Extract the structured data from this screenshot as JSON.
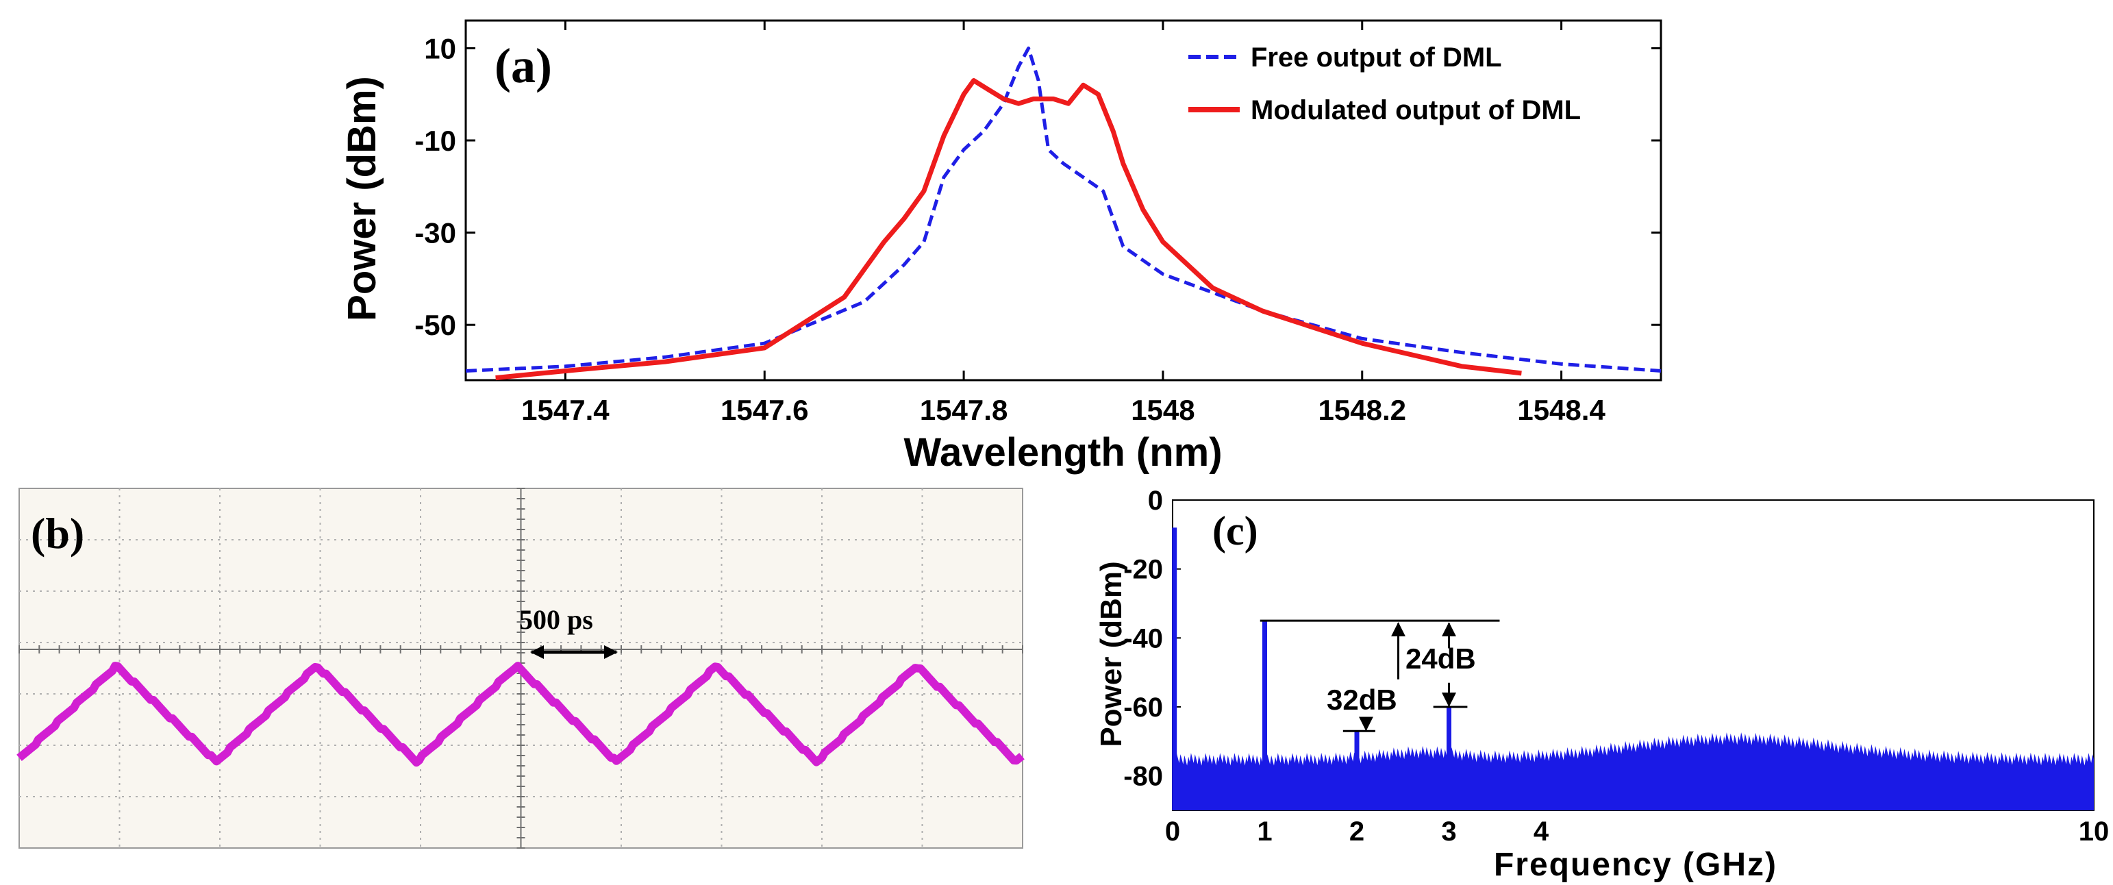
{
  "chart_data": [
    {
      "id": "a",
      "type": "line",
      "panel_label": "(a)",
      "xlabel": "Wavelength (nm)",
      "ylabel": "Power (dBm)",
      "xlim": [
        1547.3,
        1548.5
      ],
      "ylim": [
        -62,
        16
      ],
      "xticks": [
        "1547.4",
        "1547.6",
        "1547.8",
        "1548",
        "1548.2",
        "1548.4"
      ],
      "xtick_values": [
        1547.4,
        1547.6,
        1547.8,
        1548.0,
        1548.2,
        1548.4
      ],
      "yticks": [
        "10",
        "-10",
        "-30",
        "-50"
      ],
      "ytick_values": [
        10,
        -10,
        -30,
        -50
      ],
      "legend_position": "top-right",
      "series": [
        {
          "name": "Free output of DML",
          "color": "#1f1fe6",
          "style": "dashed",
          "x": [
            1547.3,
            1547.4,
            1547.5,
            1547.6,
            1547.7,
            1547.74,
            1547.76,
            1547.78,
            1547.8,
            1547.82,
            1547.84,
            1547.855,
            1547.865,
            1547.875,
            1547.885,
            1547.9,
            1547.92,
            1547.94,
            1547.96,
            1547.98,
            1548.0,
            1548.1,
            1548.2,
            1548.3,
            1548.4,
            1548.5
          ],
          "values": [
            -60,
            -59,
            -57,
            -54,
            -45,
            -37,
            -32,
            -18,
            -12,
            -8,
            -2,
            6,
            10,
            3,
            -12,
            -15,
            -18,
            -21,
            -33,
            -36,
            -39,
            -47,
            -53,
            -56,
            -58.5,
            -60
          ]
        },
        {
          "name": "Modulated output of DML",
          "color": "#ee1c1c",
          "style": "solid",
          "x": [
            1547.33,
            1547.4,
            1547.5,
            1547.6,
            1547.68,
            1547.72,
            1547.74,
            1547.76,
            1547.78,
            1547.8,
            1547.81,
            1547.825,
            1547.84,
            1547.855,
            1547.87,
            1547.89,
            1547.905,
            1547.92,
            1547.935,
            1547.95,
            1547.96,
            1547.98,
            1548.0,
            1548.05,
            1548.1,
            1548.2,
            1548.3,
            1548.36
          ],
          "values": [
            -61.5,
            -60,
            -58,
            -55,
            -44,
            -32,
            -27,
            -21,
            -9,
            0,
            3,
            1,
            -1,
            -2,
            -1,
            -1,
            -2,
            2,
            0,
            -8,
            -15,
            -25,
            -32,
            -42,
            -47,
            -54,
            -59,
            -60.5
          ]
        }
      ]
    },
    {
      "id": "b",
      "type": "line",
      "panel_label": "(b)",
      "annotation": "500 ps",
      "periods_shown": 5,
      "series": [
        {
          "name": "waveform",
          "color": "#d21fd2",
          "style": "solid",
          "shape": "triangular"
        }
      ]
    },
    {
      "id": "c",
      "type": "bar",
      "panel_label": "(c)",
      "xlabel": "Frequency (GHz)",
      "ylabel": "Power (dBm)",
      "xlim": [
        0,
        10
      ],
      "ylim": [
        -90,
        0
      ],
      "xticks": [
        "0",
        "1",
        "2",
        "3",
        "4",
        "10"
      ],
      "xtick_values": [
        0,
        1,
        2,
        3,
        4,
        10
      ],
      "yticks": [
        "0",
        "-20",
        "-40",
        "-60",
        "-80"
      ],
      "ytick_values": [
        0,
        -20,
        -40,
        -60,
        -80
      ],
      "noise_floor_dbm": -75,
      "peaks": [
        {
          "freq": 0.02,
          "power": -8
        },
        {
          "freq": 1,
          "power": -35
        },
        {
          "freq": 2,
          "power": -67
        },
        {
          "freq": 3,
          "power": -60
        }
      ],
      "annotations": [
        "32dB",
        "24dB"
      ],
      "series": [
        {
          "name": "spectrum",
          "color": "#1a1ae6"
        }
      ]
    }
  ]
}
